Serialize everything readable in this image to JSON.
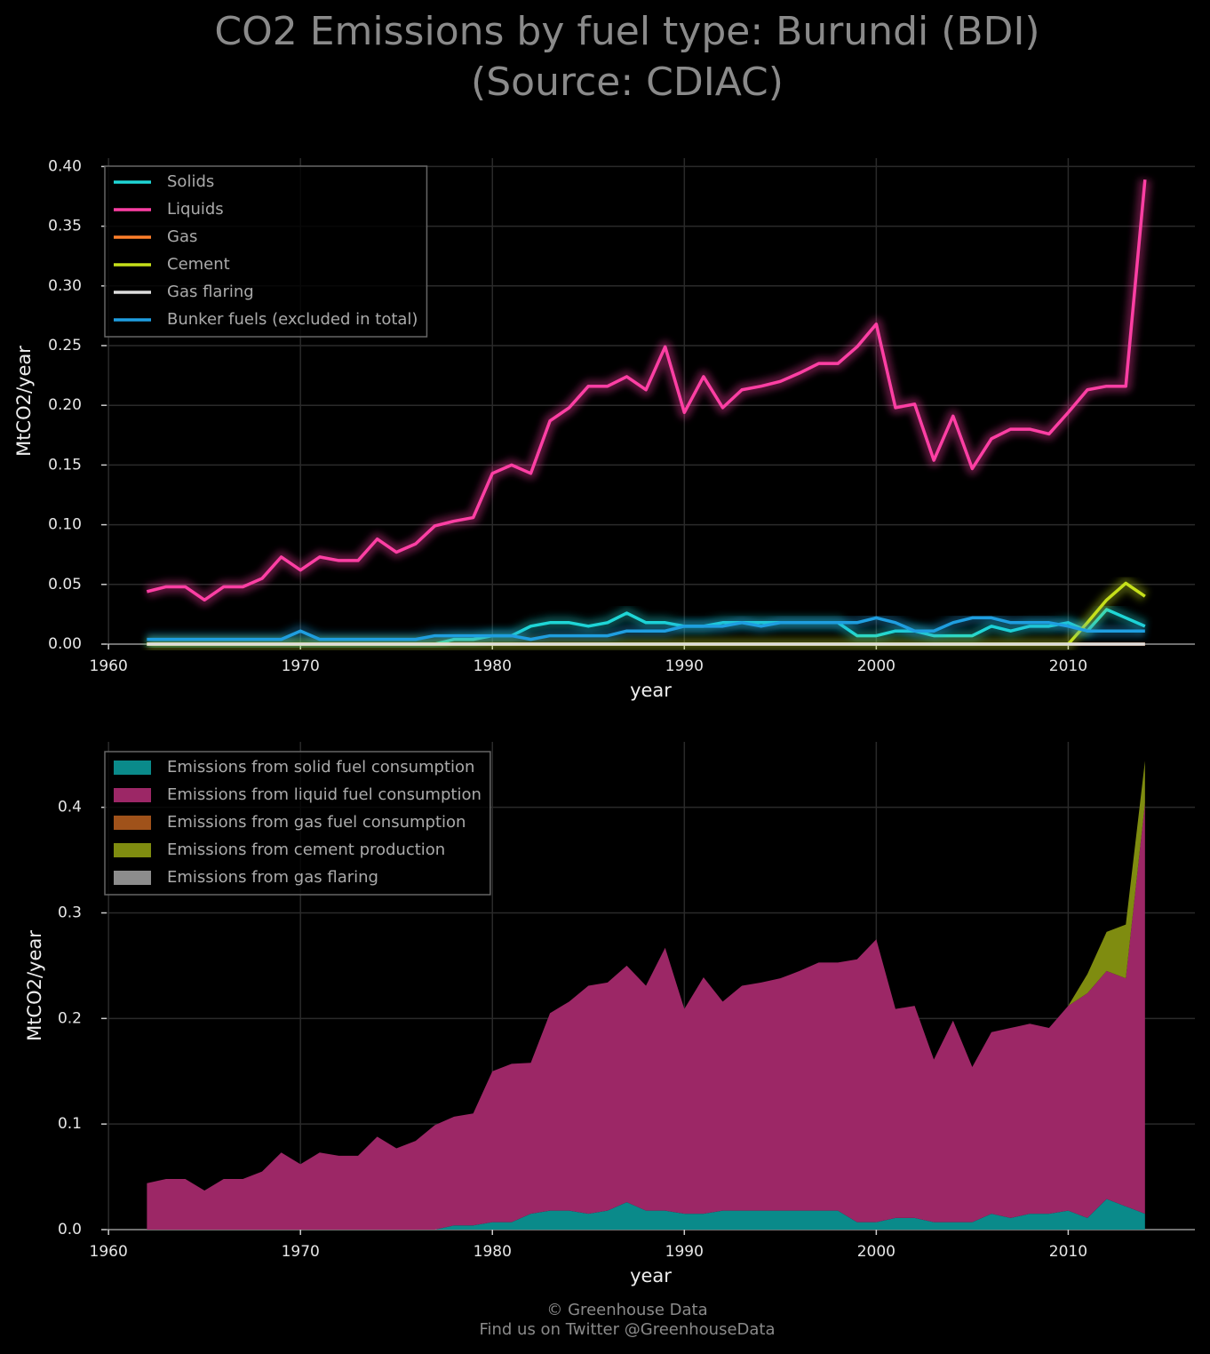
{
  "title": "CO2 Emissions by fuel type: Burundi (BDI)",
  "subtitle": "(Source: CDIAC)",
  "footer": [
    "© Greenhouse Data",
    "Find us on Twitter @GreenhouseData"
  ],
  "chart_data": [
    {
      "type": "line",
      "xlabel": "year",
      "ylabel": "MtCO2/year",
      "grid": true,
      "legend": "upper left",
      "xlim": [
        1959.9,
        2016.6
      ],
      "xticks": [
        1960,
        1970,
        1980,
        1990,
        2000,
        2010
      ],
      "ylim": [
        0,
        0.407
      ],
      "yticks": [
        {
          "value": 0,
          "label": "0.00"
        },
        {
          "value": 0.05,
          "label": "0.05"
        },
        {
          "value": 0.1,
          "label": "0.10"
        },
        {
          "value": 0.15,
          "label": "0.15"
        },
        {
          "value": 0.2,
          "label": "0.20"
        },
        {
          "value": 0.25,
          "label": "0.25"
        },
        {
          "value": 0.3,
          "label": "0.30"
        },
        {
          "value": 0.35,
          "label": "0.35"
        },
        {
          "value": 0.4,
          "label": "0.40"
        }
      ],
      "x": [
        1962,
        1963,
        1964,
        1965,
        1966,
        1967,
        1968,
        1969,
        1970,
        1971,
        1972,
        1973,
        1974,
        1975,
        1976,
        1977,
        1978,
        1979,
        1980,
        1981,
        1982,
        1983,
        1984,
        1985,
        1986,
        1987,
        1988,
        1989,
        1990,
        1991,
        1992,
        1993,
        1994,
        1995,
        1996,
        1997,
        1998,
        1999,
        2000,
        2001,
        2002,
        2003,
        2004,
        2005,
        2006,
        2007,
        2008,
        2009,
        2010,
        2011,
        2012,
        2013,
        2014
      ],
      "series": [
        {
          "name": "Solids",
          "color": "#1fd6d6",
          "values": [
            0,
            0,
            0,
            0,
            0,
            0,
            0,
            0,
            0,
            0,
            0,
            0,
            0,
            0,
            0,
            0,
            0.004,
            0.004,
            0.007,
            0.007,
            0.015,
            0.018,
            0.018,
            0.015,
            0.018,
            0.026,
            0.018,
            0.018,
            0.015,
            0.015,
            0.018,
            0.018,
            0.018,
            0.018,
            0.018,
            0.018,
            0.018,
            0.007,
            0.007,
            0.011,
            0.011,
            0.007,
            0.007,
            0.007,
            0.015,
            0.011,
            0.015,
            0.015,
            0.018,
            0.011,
            0.029,
            0.022,
            0.015
          ]
        },
        {
          "name": "Liquids",
          "color": "#ff3fa4",
          "values": [
            0.044,
            0.048,
            0.048,
            0.037,
            0.048,
            0.048,
            0.055,
            0.073,
            0.062,
            0.073,
            0.07,
            0.07,
            0.088,
            0.077,
            0.084,
            0.099,
            0.103,
            0.106,
            0.143,
            0.15,
            0.143,
            0.187,
            0.198,
            0.216,
            0.216,
            0.224,
            0.213,
            0.249,
            0.194,
            0.224,
            0.198,
            0.213,
            0.216,
            0.22,
            0.227,
            0.235,
            0.235,
            0.249,
            0.268,
            0.198,
            0.201,
            0.154,
            0.191,
            0.147,
            0.172,
            0.18,
            0.18,
            0.176,
            0.194,
            0.213,
            0.216,
            0.216,
            0.389
          ]
        },
        {
          "name": "Gas",
          "color": "#ff7f2a",
          "values": [
            0,
            0,
            0,
            0,
            0,
            0,
            0,
            0,
            0,
            0,
            0,
            0,
            0,
            0,
            0,
            0,
            0,
            0,
            0,
            0,
            0,
            0,
            0,
            0,
            0,
            0,
            0,
            0,
            0,
            0,
            0,
            0,
            0,
            0,
            0,
            0,
            0,
            0,
            0,
            0,
            0,
            0,
            0,
            0,
            0,
            0,
            0,
            0,
            0,
            0,
            0,
            0,
            0
          ]
        },
        {
          "name": "Cement",
          "color": "#c6e01a",
          "values": [
            0,
            0,
            0,
            0,
            0,
            0,
            0,
            0,
            0,
            0,
            0,
            0,
            0,
            0,
            0,
            0,
            0,
            0,
            0,
            0,
            0,
            0,
            0,
            0,
            0,
            0,
            0,
            0,
            0,
            0,
            0,
            0,
            0,
            0,
            0,
            0,
            0,
            0,
            0,
            0,
            0,
            0,
            0,
            0,
            0,
            0,
            0,
            0,
            0,
            0.018,
            0.037,
            0.051,
            0.04
          ]
        },
        {
          "name": "Gas flaring",
          "color": "#dddddd",
          "values": [
            0,
            0,
            0,
            0,
            0,
            0,
            0,
            0,
            0,
            0,
            0,
            0,
            0,
            0,
            0,
            0,
            0,
            0,
            0,
            0,
            0,
            0,
            0,
            0,
            0,
            0,
            0,
            0,
            0,
            0,
            0,
            0,
            0,
            0,
            0,
            0,
            0,
            0,
            0,
            0,
            0,
            0,
            0,
            0,
            0,
            0,
            0,
            0,
            0,
            0,
            0,
            0,
            0
          ]
        },
        {
          "name": "Bunker fuels (excluded in total)",
          "color": "#1f9ee0",
          "values": [
            0.004,
            0.004,
            0.004,
            0.004,
            0.004,
            0.004,
            0.004,
            0.004,
            0.011,
            0.004,
            0.004,
            0.004,
            0.004,
            0.004,
            0.004,
            0.007,
            0.007,
            0.007,
            0.007,
            0.007,
            0.004,
            0.007,
            0.007,
            0.007,
            0.007,
            0.011,
            0.011,
            0.011,
            0.015,
            0.015,
            0.015,
            0.018,
            0.015,
            0.018,
            0.018,
            0.018,
            0.018,
            0.018,
            0.022,
            0.018,
            0.011,
            0.011,
            0.018,
            0.022,
            0.022,
            0.018,
            0.018,
            0.018,
            0.015,
            0.011,
            0.011,
            0.011,
            0.011
          ]
        }
      ]
    },
    {
      "type": "area",
      "stacked": true,
      "xlabel": "year",
      "ylabel": "MtCO2/year",
      "grid": true,
      "legend": "upper left",
      "xlim": [
        1959.9,
        2016.6
      ],
      "xticks": [
        1960,
        1970,
        1980,
        1990,
        2000,
        2010
      ],
      "ylim": [
        0,
        0.462
      ],
      "yticks": [
        {
          "value": 0,
          "label": "0.0"
        },
        {
          "value": 0.1,
          "label": "0.1"
        },
        {
          "value": 0.2,
          "label": "0.2"
        },
        {
          "value": 0.3,
          "label": "0.3"
        },
        {
          "value": 0.4,
          "label": "0.4"
        }
      ],
      "x": [
        1962,
        1963,
        1964,
        1965,
        1966,
        1967,
        1968,
        1969,
        1970,
        1971,
        1972,
        1973,
        1974,
        1975,
        1976,
        1977,
        1978,
        1979,
        1980,
        1981,
        1982,
        1983,
        1984,
        1985,
        1986,
        1987,
        1988,
        1989,
        1990,
        1991,
        1992,
        1993,
        1994,
        1995,
        1996,
        1997,
        1998,
        1999,
        2000,
        2001,
        2002,
        2003,
        2004,
        2005,
        2006,
        2007,
        2008,
        2009,
        2010,
        2011,
        2012,
        2013,
        2014
      ],
      "series": [
        {
          "name": "Emissions from solid fuel consumption",
          "color": "#0a8a8a",
          "values": [
            0,
            0,
            0,
            0,
            0,
            0,
            0,
            0,
            0,
            0,
            0,
            0,
            0,
            0,
            0,
            0,
            0.004,
            0.004,
            0.007,
            0.007,
            0.015,
            0.018,
            0.018,
            0.015,
            0.018,
            0.026,
            0.018,
            0.018,
            0.015,
            0.015,
            0.018,
            0.018,
            0.018,
            0.018,
            0.018,
            0.018,
            0.018,
            0.007,
            0.007,
            0.011,
            0.011,
            0.007,
            0.007,
            0.007,
            0.015,
            0.011,
            0.015,
            0.015,
            0.018,
            0.011,
            0.029,
            0.022,
            0.015
          ]
        },
        {
          "name": "Emissions from liquid fuel consumption",
          "color": "#9c2766",
          "values": [
            0.044,
            0.048,
            0.048,
            0.037,
            0.048,
            0.048,
            0.055,
            0.073,
            0.062,
            0.073,
            0.07,
            0.07,
            0.088,
            0.077,
            0.084,
            0.099,
            0.103,
            0.106,
            0.143,
            0.15,
            0.143,
            0.187,
            0.198,
            0.216,
            0.216,
            0.224,
            0.213,
            0.249,
            0.194,
            0.224,
            0.198,
            0.213,
            0.216,
            0.22,
            0.227,
            0.235,
            0.235,
            0.249,
            0.268,
            0.198,
            0.201,
            0.154,
            0.191,
            0.147,
            0.172,
            0.18,
            0.18,
            0.176,
            0.194,
            0.213,
            0.216,
            0.216,
            0.389
          ]
        },
        {
          "name": "Emissions from gas fuel consumption",
          "color": "#a0521a",
          "values": [
            0,
            0,
            0,
            0,
            0,
            0,
            0,
            0,
            0,
            0,
            0,
            0,
            0,
            0,
            0,
            0,
            0,
            0,
            0,
            0,
            0,
            0,
            0,
            0,
            0,
            0,
            0,
            0,
            0,
            0,
            0,
            0,
            0,
            0,
            0,
            0,
            0,
            0,
            0,
            0,
            0,
            0,
            0,
            0,
            0,
            0,
            0,
            0,
            0,
            0,
            0,
            0,
            0
          ]
        },
        {
          "name": "Emissions from cement production",
          "color": "#7f8c10",
          "values": [
            0,
            0,
            0,
            0,
            0,
            0,
            0,
            0,
            0,
            0,
            0,
            0,
            0,
            0,
            0,
            0,
            0,
            0,
            0,
            0,
            0,
            0,
            0,
            0,
            0,
            0,
            0,
            0,
            0,
            0,
            0,
            0,
            0,
            0,
            0,
            0,
            0,
            0,
            0,
            0,
            0,
            0,
            0,
            0,
            0,
            0,
            0,
            0,
            0,
            0.018,
            0.037,
            0.051,
            0.04
          ]
        },
        {
          "name": "Emissions from gas flaring",
          "color": "#8c8c8c",
          "values": [
            0,
            0,
            0,
            0,
            0,
            0,
            0,
            0,
            0,
            0,
            0,
            0,
            0,
            0,
            0,
            0,
            0,
            0,
            0,
            0,
            0,
            0,
            0,
            0,
            0,
            0,
            0,
            0,
            0,
            0,
            0,
            0,
            0,
            0,
            0,
            0,
            0,
            0,
            0,
            0,
            0,
            0,
            0,
            0,
            0,
            0,
            0,
            0,
            0,
            0,
            0,
            0,
            0
          ]
        }
      ]
    }
  ]
}
